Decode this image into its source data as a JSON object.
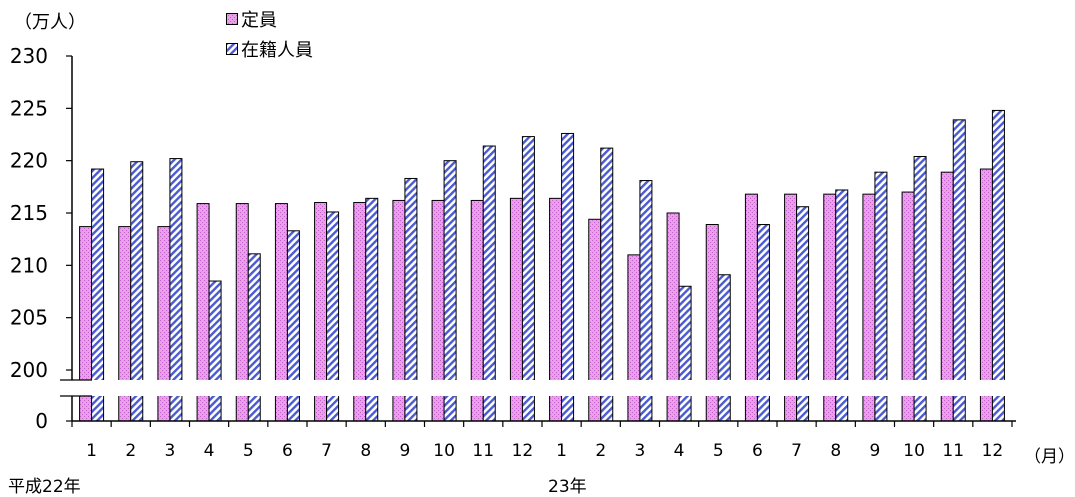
{
  "chart_data": {
    "type": "bar",
    "ylabel": "（万人）",
    "xunit": "（月）",
    "year_labels": [
      "平成22年",
      "23年"
    ],
    "categories": [
      "1",
      "2",
      "3",
      "4",
      "5",
      "6",
      "7",
      "8",
      "9",
      "10",
      "11",
      "12",
      "1",
      "2",
      "3",
      "4",
      "5",
      "6",
      "7",
      "8",
      "9",
      "10",
      "11",
      "12"
    ],
    "yticks": [
      "230",
      "225",
      "220",
      "215",
      "210",
      "205",
      "200",
      "0"
    ],
    "ylim": [
      200,
      230
    ],
    "axis_break": true,
    "series": [
      {
        "name": "定員",
        "color": "#e8a0e8",
        "values": [
          213.7,
          213.7,
          213.7,
          215.9,
          215.9,
          215.9,
          216.0,
          216.0,
          216.2,
          216.2,
          216.2,
          216.4,
          216.4,
          214.4,
          211.0,
          215.0,
          213.9,
          216.8,
          216.8,
          216.8,
          216.8,
          217.0,
          218.9,
          219.2
        ]
      },
      {
        "name": "在籍人員",
        "color": "#9ea8e0",
        "values": [
          219.2,
          219.9,
          220.2,
          208.5,
          211.1,
          213.3,
          215.1,
          216.4,
          218.3,
          220.0,
          221.4,
          222.3,
          222.6,
          221.2,
          218.1,
          208.0,
          209.1,
          213.9,
          215.6,
          217.2,
          218.9,
          220.4,
          223.9,
          224.8
        ]
      }
    ]
  }
}
